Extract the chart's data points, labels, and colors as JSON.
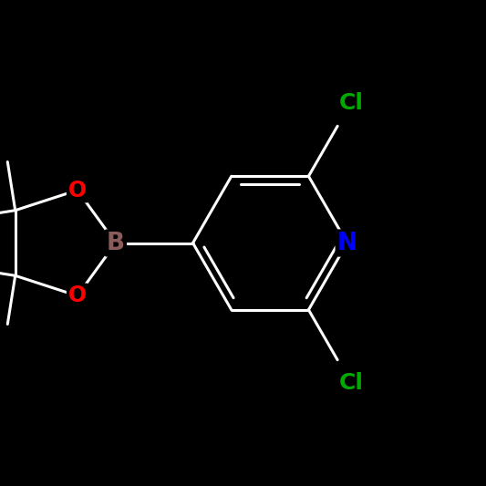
{
  "background_color": "#000000",
  "bond_color": "#ffffff",
  "atom_colors": {
    "B": "#8B5A5A",
    "O": "#ff0000",
    "N": "#0000ff",
    "Cl_top": "#00aa00",
    "Cl_bot": "#00aa00",
    "C": "#ffffff"
  },
  "bond_width": 2.2,
  "label_fontsize": 17,
  "label_fontsize_small": 15
}
